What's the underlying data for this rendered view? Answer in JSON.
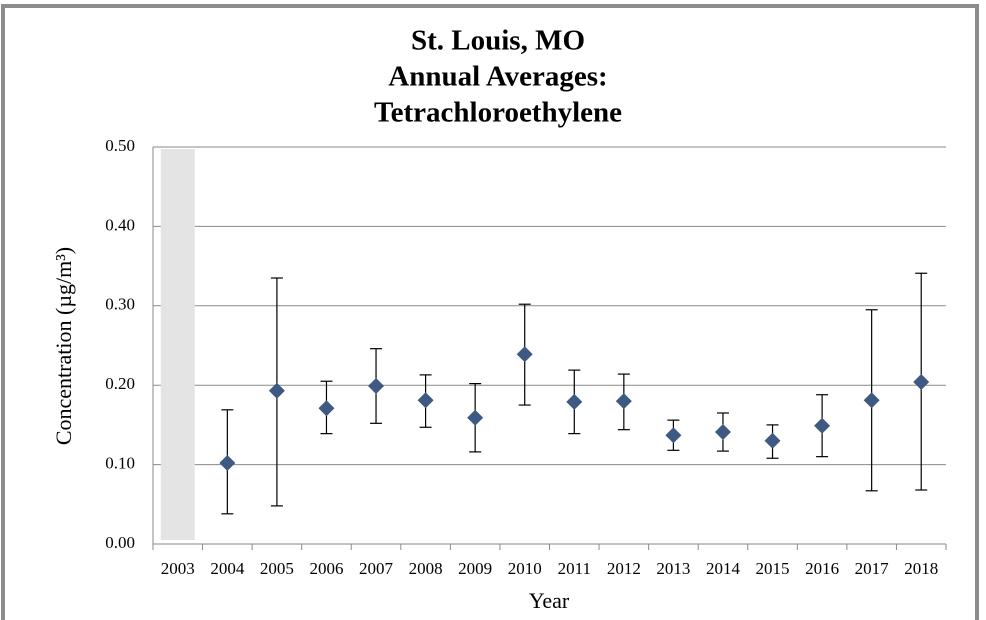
{
  "chart_data": {
    "type": "scatter",
    "title": [
      "St. Louis, MO",
      "Annual Averages:",
      "Tetrachloroethylene"
    ],
    "x_label": "Year",
    "y_label": "Concentration (µg/m³)",
    "categories": [
      "2003",
      "2004",
      "2005",
      "2006",
      "2007",
      "2008",
      "2009",
      "2010",
      "2011",
      "2012",
      "2013",
      "2014",
      "2015",
      "2016",
      "2017",
      "2018"
    ],
    "values": [
      null,
      0.102,
      0.193,
      0.171,
      0.199,
      0.181,
      0.159,
      0.239,
      0.179,
      0.18,
      0.137,
      0.141,
      0.13,
      0.149,
      0.181,
      0.204
    ],
    "lower": [
      null,
      0.038,
      0.048,
      0.139,
      0.152,
      0.147,
      0.116,
      0.175,
      0.139,
      0.144,
      0.118,
      0.117,
      0.108,
      0.11,
      0.067,
      0.068
    ],
    "upper": [
      null,
      0.169,
      0.335,
      0.205,
      0.246,
      0.213,
      0.202,
      0.302,
      0.219,
      0.214,
      0.156,
      0.165,
      0.15,
      0.188,
      0.295,
      0.341
    ],
    "color": "#3f5a82",
    "ylim": [
      0,
      0.5
    ],
    "yticks": [
      {
        "value": 0,
        "label": "0.00"
      },
      {
        "value": 0.1,
        "label": "0.10"
      },
      {
        "value": 0.2,
        "label": "0.20"
      },
      {
        "value": 0.3,
        "label": "0.30"
      },
      {
        "value": 0.4,
        "label": "0.40"
      },
      {
        "value": 0.5,
        "label": "0.50"
      }
    ],
    "grid": true
  }
}
